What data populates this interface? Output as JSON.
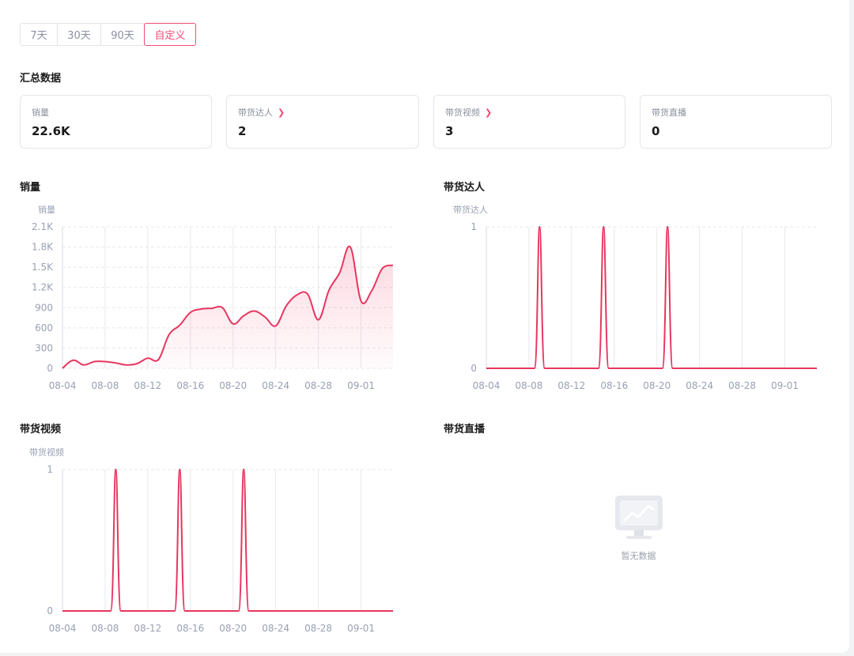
{
  "range_tabs": [
    "7天",
    "30天",
    "90天",
    "自定义"
  ],
  "active_tab": "自定义",
  "summary": {
    "title": "汇总数据",
    "cards": [
      {
        "label": "销量",
        "value": "22.6K",
        "has_link": false
      },
      {
        "label": "带货达人",
        "value": "2",
        "has_link": true
      },
      {
        "label": "带货视频",
        "value": "3",
        "has_link": true
      },
      {
        "label": "带货直播",
        "value": "0",
        "has_link": false
      }
    ]
  },
  "charts": {
    "sales": {
      "title": "销量",
      "unit_label": "销量"
    },
    "influencers": {
      "title": "带货达人",
      "unit_label": "带货达人"
    },
    "videos": {
      "title": "带货视频",
      "unit_label": "带货视频"
    },
    "live": {
      "title": "带货直播",
      "empty_text": "暂无数据"
    }
  },
  "colors": {
    "accent": "#f04b73",
    "line": "#e8365f",
    "grid": "#e6e8ee",
    "axis_text": "#9aa0b4"
  },
  "chart_data": [
    {
      "type": "area",
      "ylabel": "销量",
      "ylim": [
        0,
        2100
      ],
      "yticks": [
        0,
        300,
        600,
        900,
        1200,
        1500,
        1800,
        2100
      ],
      "ytick_labels": [
        "0",
        "300",
        "600",
        "900",
        "1.2K",
        "1.5K",
        "1.8K",
        "2.1K"
      ],
      "xtick_labels": [
        "08-04",
        "08-08",
        "08-12",
        "08-16",
        "08-20",
        "08-24",
        "08-28",
        "09-01"
      ],
      "x": [
        "08-04",
        "08-05",
        "08-06",
        "08-07",
        "08-08",
        "08-09",
        "08-10",
        "08-11",
        "08-12",
        "08-13",
        "08-14",
        "08-15",
        "08-16",
        "08-17",
        "08-18",
        "08-19",
        "08-20",
        "08-21",
        "08-22",
        "08-23",
        "08-24",
        "08-25",
        "08-26",
        "08-27",
        "08-28",
        "08-29",
        "08-30",
        "08-31",
        "09-01",
        "09-02",
        "09-03",
        "09-04"
      ],
      "values": [
        0,
        120,
        50,
        100,
        100,
        80,
        50,
        70,
        150,
        130,
        500,
        640,
        830,
        880,
        890,
        900,
        660,
        780,
        850,
        760,
        630,
        930,
        1090,
        1100,
        720,
        1160,
        1420,
        1800,
        1000,
        1150,
        1480,
        1530
      ]
    },
    {
      "type": "line",
      "ylabel": "带货达人",
      "ylim": [
        0,
        1
      ],
      "yticks": [
        0,
        1
      ],
      "ytick_labels": [
        "0",
        "1"
      ],
      "xtick_labels": [
        "08-04",
        "08-08",
        "08-12",
        "08-16",
        "08-20",
        "08-24",
        "08-28",
        "09-01"
      ],
      "x": [
        "08-04",
        "08-05",
        "08-06",
        "08-07",
        "08-08",
        "08-09",
        "08-10",
        "08-11",
        "08-12",
        "08-13",
        "08-14",
        "08-15",
        "08-16",
        "08-17",
        "08-18",
        "08-19",
        "08-20",
        "08-21",
        "08-22",
        "08-23",
        "08-24",
        "08-25",
        "08-26",
        "08-27",
        "08-28",
        "08-29",
        "08-30",
        "08-31",
        "09-01",
        "09-02",
        "09-03",
        "09-04"
      ],
      "values": [
        0,
        0,
        0,
        0,
        0,
        1,
        0,
        0,
        0,
        0,
        0,
        1,
        0,
        0,
        0,
        0,
        0,
        1,
        0,
        0,
        0,
        0,
        0,
        0,
        0,
        0,
        0,
        0,
        0,
        0,
        0,
        0
      ]
    },
    {
      "type": "line",
      "ylabel": "带货视频",
      "ylim": [
        0,
        1
      ],
      "yticks": [
        0,
        1
      ],
      "ytick_labels": [
        "0",
        "1"
      ],
      "xtick_labels": [
        "08-04",
        "08-08",
        "08-12",
        "08-16",
        "08-20",
        "08-24",
        "08-28",
        "09-01"
      ],
      "x": [
        "08-04",
        "08-05",
        "08-06",
        "08-07",
        "08-08",
        "08-09",
        "08-10",
        "08-11",
        "08-12",
        "08-13",
        "08-14",
        "08-15",
        "08-16",
        "08-17",
        "08-18",
        "08-19",
        "08-20",
        "08-21",
        "08-22",
        "08-23",
        "08-24",
        "08-25",
        "08-26",
        "08-27",
        "08-28",
        "08-29",
        "08-30",
        "08-31",
        "09-01",
        "09-02",
        "09-03",
        "09-04"
      ],
      "values": [
        0,
        0,
        0,
        0,
        0,
        1,
        0,
        0,
        0,
        0,
        0,
        1,
        0,
        0,
        0,
        0,
        0,
        1,
        0,
        0,
        0,
        0,
        0,
        0,
        0,
        0,
        0,
        0,
        0,
        0,
        0,
        0
      ]
    }
  ]
}
